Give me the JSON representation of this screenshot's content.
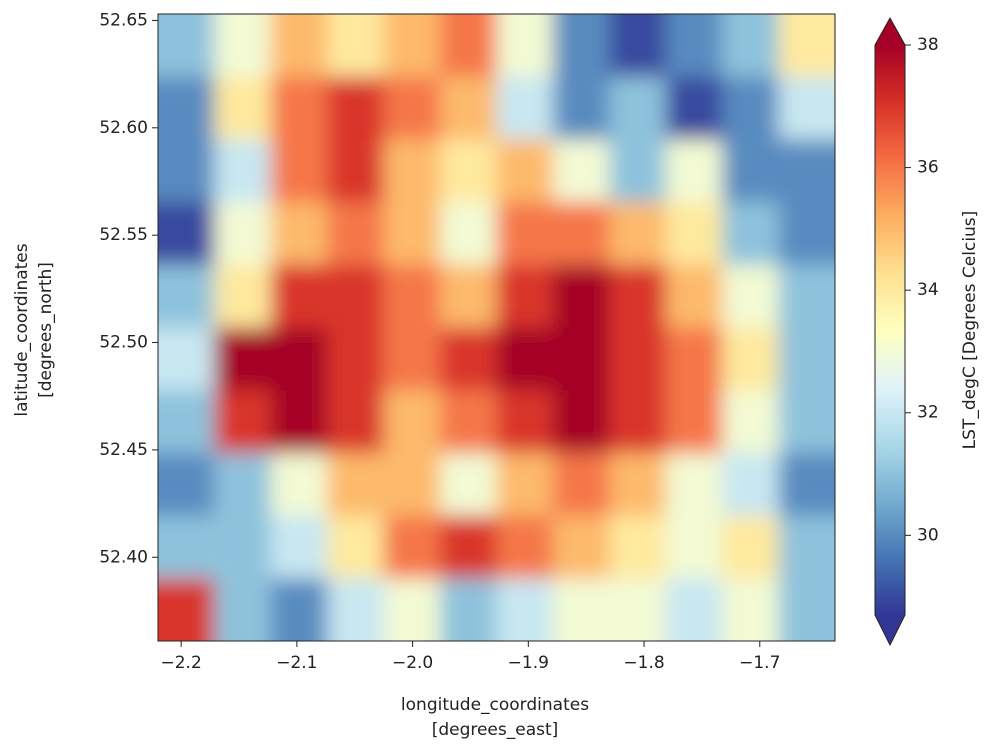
{
  "chart_data": {
    "type": "heatmap",
    "colormap": "RdYlBu_r",
    "xlabel": [
      "longitude_coordinates",
      "[degrees_east]"
    ],
    "ylabel": [
      "latitude_coordinates",
      "[degrees_north]"
    ],
    "colorbar_label": "LST_degC [Degrees Celcius]",
    "xlim": [
      -2.22,
      -1.635
    ],
    "ylim": [
      52.361,
      52.653
    ],
    "xticks": [
      {
        "value": -2.2,
        "label": "−2.2"
      },
      {
        "value": -2.1,
        "label": "−2.1"
      },
      {
        "value": -2.0,
        "label": "−2.0"
      },
      {
        "value": -1.9,
        "label": "−1.9"
      },
      {
        "value": -1.8,
        "label": "−1.8"
      },
      {
        "value": -1.7,
        "label": "−1.7"
      }
    ],
    "yticks": [
      {
        "value": 52.4,
        "label": "52.40"
      },
      {
        "value": 52.45,
        "label": "52.45"
      },
      {
        "value": 52.5,
        "label": "52.50"
      },
      {
        "value": 52.55,
        "label": "52.55"
      },
      {
        "value": 52.6,
        "label": "52.60"
      },
      {
        "value": 52.65,
        "label": "52.65"
      }
    ],
    "clim": [
      28.7,
      38
    ],
    "cticks": [
      30,
      32,
      34,
      36,
      38
    ],
    "extend": "both",
    "z": [
      [
        31,
        33,
        35,
        34,
        35,
        36,
        33,
        30,
        29,
        30,
        31,
        34
      ],
      [
        30,
        34,
        36,
        37,
        36,
        35,
        32,
        30,
        31,
        29,
        30,
        32
      ],
      [
        30,
        32,
        36,
        37,
        35,
        34,
        35,
        33,
        31,
        33,
        30,
        30
      ],
      [
        29,
        33,
        35,
        36,
        35,
        33,
        36,
        36,
        35,
        34,
        31,
        30
      ],
      [
        31,
        34,
        37,
        37,
        36,
        35,
        37,
        38,
        37,
        35,
        33,
        31
      ],
      [
        32,
        38,
        38,
        37,
        36,
        37,
        38,
        38,
        37,
        36,
        34,
        31
      ],
      [
        31,
        37,
        38,
        37,
        35,
        36,
        37,
        38,
        37,
        36,
        33,
        31
      ],
      [
        30,
        31,
        33,
        35,
        35,
        33,
        35,
        36,
        35,
        33,
        32,
        30
      ],
      [
        31,
        31,
        32,
        34,
        36,
        37,
        36,
        35,
        34,
        33,
        34,
        31
      ],
      [
        37,
        31,
        30,
        32,
        33,
        31,
        32,
        33,
        33,
        32,
        33,
        31
      ]
    ]
  }
}
